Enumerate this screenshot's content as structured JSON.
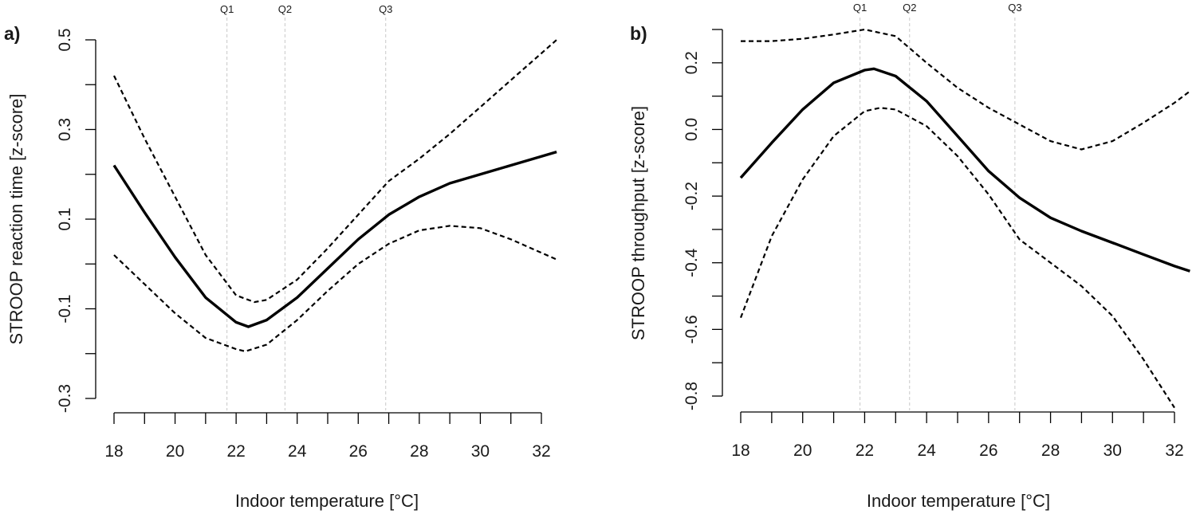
{
  "chart_data": [
    {
      "type": "line",
      "panel_label": "a)",
      "xlabel": "Indoor temperature [°C]",
      "ylabel": "STROOP reaction time [z-score]",
      "xlim": [
        18,
        32
      ],
      "ylim": [
        -0.3,
        0.5
      ],
      "x_ticks": [
        18,
        19,
        20,
        21,
        22,
        23,
        24,
        25,
        26,
        27,
        28,
        29,
        30,
        31,
        32
      ],
      "x_tick_labels": [
        "18",
        "20",
        "22",
        "24",
        "26",
        "28",
        "30",
        "32"
      ],
      "y_ticks": [
        -0.3,
        -0.2,
        -0.1,
        0.0,
        0.1,
        0.2,
        0.3,
        0.4,
        0.5
      ],
      "y_tick_labels": [
        "-0.3",
        "-0.1",
        "0.1",
        "0.3",
        "0.5"
      ],
      "quartiles": [
        {
          "label": "Q1",
          "x": 21.7
        },
        {
          "label": "Q2",
          "x": 23.6
        },
        {
          "label": "Q3",
          "x": 26.9
        }
      ],
      "series": [
        {
          "name": "estimate",
          "style": "solid",
          "x": [
            18,
            19,
            20,
            21,
            22,
            22.4,
            23,
            24,
            25,
            26,
            27,
            28,
            29,
            30,
            31,
            32,
            32.5
          ],
          "values": [
            0.22,
            0.115,
            0.015,
            -0.075,
            -0.13,
            -0.14,
            -0.125,
            -0.075,
            -0.01,
            0.055,
            0.11,
            0.15,
            0.18,
            0.2,
            0.22,
            0.24,
            0.25
          ]
        },
        {
          "name": "upper 95% CI",
          "style": "dashed",
          "x": [
            18,
            19,
            20,
            21,
            22,
            22.6,
            23,
            24,
            25,
            26,
            27,
            28,
            29,
            30,
            31,
            32,
            32.5
          ],
          "values": [
            0.42,
            0.28,
            0.15,
            0.02,
            -0.07,
            -0.085,
            -0.08,
            -0.035,
            0.035,
            0.11,
            0.185,
            0.235,
            0.29,
            0.35,
            0.41,
            0.47,
            0.5
          ]
        },
        {
          "name": "lower 95% CI",
          "style": "dashed",
          "x": [
            18,
            19,
            20,
            21,
            22,
            22.3,
            23,
            24,
            25,
            26,
            27,
            28,
            29,
            30,
            31,
            32,
            32.5
          ],
          "values": [
            0.02,
            -0.045,
            -0.11,
            -0.165,
            -0.19,
            -0.195,
            -0.18,
            -0.125,
            -0.06,
            0.0,
            0.045,
            0.075,
            0.085,
            0.08,
            0.055,
            0.025,
            0.01
          ]
        }
      ]
    },
    {
      "type": "line",
      "panel_label": "b)",
      "xlabel": "Indoor temperature [°C]",
      "ylabel": "STROOP throughput [z-score]",
      "xlim": [
        18,
        32
      ],
      "ylim": [
        -0.8,
        0.3
      ],
      "x_ticks": [
        18,
        19,
        20,
        21,
        22,
        23,
        24,
        25,
        26,
        27,
        28,
        29,
        30,
        31,
        32
      ],
      "x_tick_labels": [
        "18",
        "20",
        "22",
        "24",
        "26",
        "28",
        "30",
        "32"
      ],
      "y_ticks": [
        -0.8,
        -0.7,
        -0.6,
        -0.5,
        -0.4,
        -0.3,
        -0.2,
        -0.1,
        0.0,
        0.1,
        0.2,
        0.3
      ],
      "y_tick_labels": [
        "-0.8",
        "-0.6",
        "-0.4",
        "-0.2",
        "0.0",
        "0.2"
      ],
      "quartiles": [
        {
          "label": "Q1",
          "x": 21.85
        },
        {
          "label": "Q2",
          "x": 23.45
        },
        {
          "label": "Q3",
          "x": 26.85
        }
      ],
      "series": [
        {
          "name": "estimate",
          "style": "solid",
          "x": [
            18,
            19,
            20,
            21,
            22,
            22.3,
            23,
            24,
            25,
            26,
            27,
            28,
            29,
            30,
            31,
            32,
            32.5
          ],
          "values": [
            -0.145,
            -0.04,
            0.06,
            0.14,
            0.178,
            0.182,
            0.16,
            0.085,
            -0.02,
            -0.125,
            -0.205,
            -0.265,
            -0.305,
            -0.34,
            -0.375,
            -0.41,
            -0.425
          ]
        },
        {
          "name": "upper 95% CI",
          "style": "dashed",
          "x": [
            18,
            19,
            20,
            21,
            22,
            23,
            24,
            25,
            26,
            27,
            28,
            29,
            30,
            31,
            32,
            32.5
          ],
          "values": [
            0.265,
            0.265,
            0.272,
            0.285,
            0.3,
            0.28,
            0.2,
            0.125,
            0.065,
            0.015,
            -0.035,
            -0.06,
            -0.035,
            0.02,
            0.08,
            0.115
          ]
        },
        {
          "name": "lower 95% CI",
          "style": "dashed",
          "x": [
            18,
            19,
            20,
            21,
            22,
            22.5,
            23,
            24,
            25,
            26,
            27,
            28,
            29,
            30,
            31,
            32
          ],
          "values": [
            -0.565,
            -0.32,
            -0.15,
            -0.02,
            0.055,
            0.065,
            0.06,
            0.01,
            -0.08,
            -0.195,
            -0.33,
            -0.4,
            -0.47,
            -0.56,
            -0.69,
            -0.835
          ]
        }
      ]
    }
  ]
}
